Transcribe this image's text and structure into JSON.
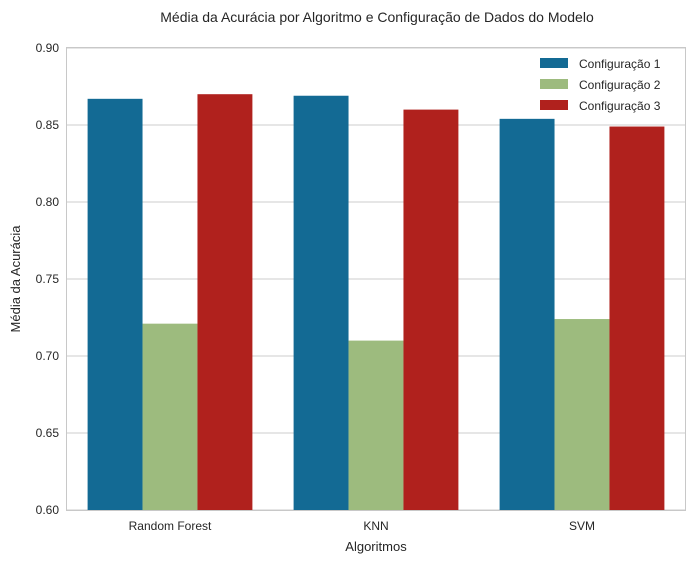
{
  "chart_data": {
    "type": "bar",
    "title": "Média da Acurácia por Algoritmo e Configuração de Dados do Modelo",
    "xlabel": "Algoritmos",
    "ylabel": "Média da Acurácia",
    "categories": [
      "Random Forest",
      "KNN",
      "SVM"
    ],
    "series": [
      {
        "name": "Configuração 1",
        "color": "#136a94",
        "values": [
          0.867,
          0.869,
          0.854
        ]
      },
      {
        "name": "Configuração 2",
        "color": "#9dbb7e",
        "values": [
          0.721,
          0.71,
          0.724
        ]
      },
      {
        "name": "Configuração 3",
        "color": "#b0211d",
        "values": [
          0.87,
          0.86,
          0.849
        ]
      }
    ],
    "ylim": [
      0.6,
      0.9
    ],
    "yticks": [
      "0.60",
      "0.65",
      "0.70",
      "0.75",
      "0.80",
      "0.85",
      "0.90"
    ],
    "grid": "horizontal",
    "legend_position": "top-right"
  }
}
